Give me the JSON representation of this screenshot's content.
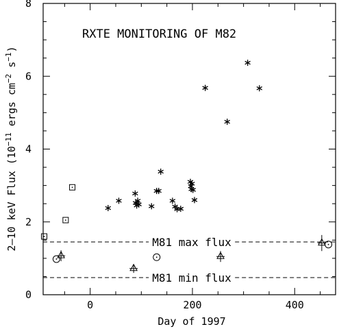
{
  "chart_data": {
    "type": "scatter",
    "title": "RXTE MONITORING OF M82",
    "xlabel": "Day of 1997",
    "ylabel_parts": [
      "2–10 keV Flux (10",
      "−11",
      " ergs cm",
      "−2",
      " s",
      "−1",
      ")"
    ],
    "xlim": [
      -92,
      480
    ],
    "ylim": [
      0,
      8
    ],
    "xticks": [
      0,
      200,
      400
    ],
    "yticks": [
      0,
      2,
      4,
      6,
      8
    ],
    "grid": false,
    "series": [
      {
        "marker": "asterisk",
        "points": [
          [
            35,
            2.38
          ],
          [
            56,
            2.58
          ],
          [
            88,
            2.78
          ],
          [
            89,
            2.52
          ],
          [
            91,
            2.45
          ],
          [
            93,
            2.58
          ],
          [
            95,
            2.48
          ],
          [
            120,
            2.43
          ],
          [
            130,
            2.85
          ],
          [
            134,
            2.85
          ],
          [
            138,
            3.38
          ],
          [
            161,
            2.58
          ],
          [
            166,
            2.42
          ],
          [
            170,
            2.35
          ],
          [
            177,
            2.36
          ],
          [
            196,
            3.1
          ],
          [
            197,
            2.98
          ],
          [
            198,
            2.9
          ],
          [
            199,
            3.05
          ],
          [
            201,
            2.88
          ],
          [
            204,
            2.6
          ],
          [
            225,
            5.68
          ],
          [
            268,
            4.75
          ],
          [
            308,
            6.37
          ],
          [
            331,
            5.67
          ]
        ]
      },
      {
        "marker": "square-dot",
        "points": [
          [
            -90,
            1.6
          ],
          [
            -48,
            2.05
          ],
          [
            -35,
            2.95
          ]
        ]
      },
      {
        "marker": "circle-dot",
        "points": [
          [
            -66,
            0.98
          ],
          [
            130,
            1.03
          ],
          [
            466,
            1.38
          ]
        ]
      },
      {
        "marker": "triangle-errorbar",
        "points": [
          [
            -57,
            1.07,
            0.15
          ],
          [
            85,
            0.72,
            0.12
          ],
          [
            255,
            1.05,
            0.15
          ],
          [
            453,
            1.42,
            0.22
          ]
        ]
      }
    ],
    "reference_lines": [
      {
        "y": 1.45,
        "label": "M81 max flux",
        "style": "dashed"
      },
      {
        "y": 0.47,
        "label": "M81 min flux",
        "style": "dashed"
      }
    ]
  }
}
